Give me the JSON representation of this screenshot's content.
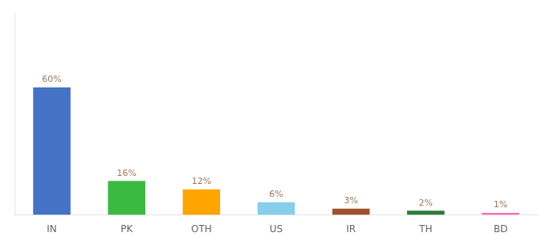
{
  "chart_data": {
    "type": "bar",
    "categories": [
      "IN",
      "PK",
      "OTH",
      "US",
      "IR",
      "TH",
      "BD"
    ],
    "values": [
      60,
      16,
      12,
      6,
      3,
      2,
      1
    ],
    "value_labels": [
      "60%",
      "16%",
      "12%",
      "6%",
      "3%",
      "2%",
      "1%"
    ],
    "data_labels": true,
    "colors": [
      "#4472C4",
      "#3CB940",
      "#FFA500",
      "#87CEEB",
      "#A0522D",
      "#2D7A3A",
      "#FF69B4"
    ],
    "ylim": [
      0,
      95
    ],
    "grid": false,
    "tick_labels": "x"
  }
}
